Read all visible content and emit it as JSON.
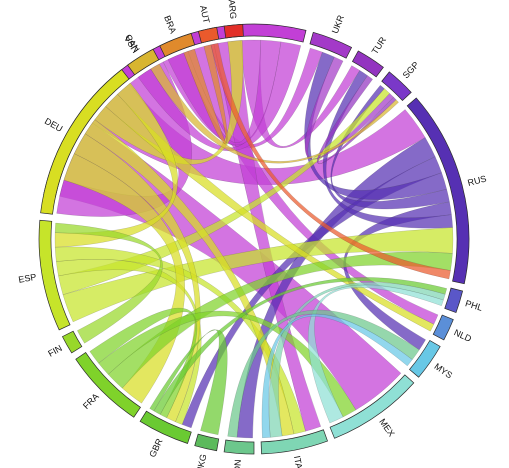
{
  "chart_data": {
    "type": "chord",
    "nodes": [
      {
        "code": "USA",
        "color": "#c23fd6",
        "start": -78,
        "end": 14
      },
      {
        "code": "UKR",
        "color": "#a33ac8",
        "start": 16,
        "end": 27
      },
      {
        "code": "TUR",
        "color": "#9334c0",
        "start": 29,
        "end": 37
      },
      {
        "code": "SGP",
        "color": "#7a38c8",
        "start": 39,
        "end": 47
      },
      {
        "code": "RUS",
        "color": "#5630b3",
        "start": 49,
        "end": 102
      },
      {
        "code": "PHL",
        "color": "#5a57c8",
        "start": 104,
        "end": 110
      },
      {
        "code": "NLD",
        "color": "#5b8fd8",
        "start": 112,
        "end": 118
      },
      {
        "code": "MYS",
        "color": "#68c8e6",
        "start": 120,
        "end": 130
      },
      {
        "code": "MEX",
        "color": "#8fe0d5",
        "start": 132,
        "end": 158
      },
      {
        "code": "ITA",
        "color": "#7fd6b4",
        "start": 160,
        "end": 178
      },
      {
        "code": "IDN",
        "color": "#6cc78c",
        "start": 180,
        "end": 188
      },
      {
        "code": "HKG",
        "color": "#5cba5c",
        "start": 190,
        "end": 196
      },
      {
        "code": "GBR",
        "color": "#6aca32",
        "start": 198,
        "end": 212
      },
      {
        "code": "FRA",
        "color": "#7fd22a",
        "start": 214,
        "end": 236
      },
      {
        "code": "FIN",
        "color": "#98d82a",
        "start": 238,
        "end": 243
      },
      {
        "code": "ESP",
        "color": "#c6e42a",
        "start": 245,
        "end": 275
      },
      {
        "code": "DEU",
        "color": "#d8de22",
        "start": 277,
        "end": 322
      },
      {
        "code": "CAN",
        "color": "#d8b530",
        "start": 324,
        "end": 332
      },
      {
        "code": "BRA",
        "color": "#e08a2c",
        "start": 334,
        "end": 343
      },
      {
        "code": "AUT",
        "color": "#ea5a2c",
        "start": 345,
        "end": 350
      },
      {
        "code": "ARG",
        "color": "#e22f28",
        "start": 352,
        "end": 357
      }
    ],
    "links": [
      {
        "source": "USA",
        "target": "MEX",
        "value": 12
      },
      {
        "source": "USA",
        "target": "RUS",
        "value": 8
      },
      {
        "source": "USA",
        "target": "DEU",
        "value": 6
      },
      {
        "source": "USA",
        "target": "UKR",
        "value": 4
      },
      {
        "source": "USA",
        "target": "NLD",
        "value": 4
      },
      {
        "source": "USA",
        "target": "ITA",
        "value": 4
      },
      {
        "source": "USA",
        "target": "TUR",
        "value": 3
      },
      {
        "source": "USA",
        "target": "BRA",
        "value": 3
      },
      {
        "source": "USA",
        "target": "CAN",
        "value": 3
      },
      {
        "source": "RUS",
        "target": "IDN",
        "value": 5
      },
      {
        "source": "RUS",
        "target": "GBR",
        "value": 4
      },
      {
        "source": "RUS",
        "target": "UKR",
        "value": 4
      },
      {
        "source": "RUS",
        "target": "SGP",
        "value": 3
      },
      {
        "source": "RUS",
        "target": "MYS",
        "value": 3
      },
      {
        "source": "RUS",
        "target": "TUR",
        "value": 3
      },
      {
        "source": "ESP",
        "target": "RUS",
        "value": 6
      },
      {
        "source": "ESP",
        "target": "SGP",
        "value": 4
      },
      {
        "source": "ESP",
        "target": "GBR",
        "value": 3
      },
      {
        "source": "ESP",
        "target": "ITA",
        "value": 3
      },
      {
        "source": "DEU",
        "target": "FRA",
        "value": 5
      },
      {
        "source": "DEU",
        "target": "GBR",
        "value": 4
      },
      {
        "source": "DEU",
        "target": "ITA",
        "value": 3
      },
      {
        "source": "DEU",
        "target": "ARG",
        "value": 3
      },
      {
        "source": "DEU",
        "target": "NLD",
        "value": 3
      },
      {
        "source": "DEU",
        "target": "ESP",
        "value": 3
      },
      {
        "source": "FRA",
        "target": "RUS",
        "value": 4
      },
      {
        "source": "FRA",
        "target": "MEX",
        "value": 3
      },
      {
        "source": "FRA",
        "target": "GBR",
        "value": 3
      },
      {
        "source": "GBR",
        "target": "PHL",
        "value": 3
      },
      {
        "source": "GBR",
        "target": "HKG",
        "value": 2
      },
      {
        "source": "ITA",
        "target": "PHL",
        "value": 3
      },
      {
        "source": "MEX",
        "target": "PHL",
        "value": 3
      },
      {
        "source": "IDN",
        "target": "MYS",
        "value": 3
      },
      {
        "source": "MYS",
        "target": "ITA",
        "value": 2
      },
      {
        "source": "UKR",
        "target": "SGP",
        "value": 3
      },
      {
        "source": "TUR",
        "target": "SGP",
        "value": 2
      },
      {
        "source": "CAN",
        "target": "SGP",
        "value": 2
      },
      {
        "source": "FIN",
        "target": "ESP",
        "value": 2
      },
      {
        "source": "BRA",
        "target": "AUT",
        "value": 2
      },
      {
        "source": "AUT",
        "target": "RUS",
        "value": 2
      }
    ]
  }
}
